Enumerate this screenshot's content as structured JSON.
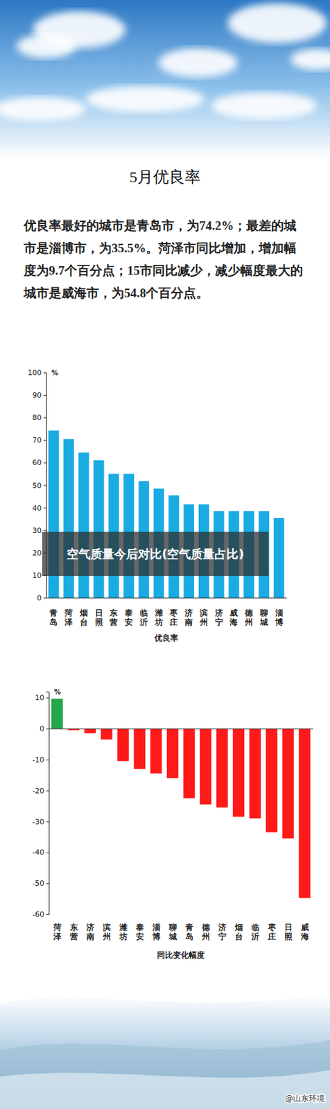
{
  "page": {
    "title": "5月优良率",
    "text": "优良率最好的城市是青岛市，为74.2%；最差的城市是淄博市，为35.5%。菏泽市同比增加，增加幅度为9.7个百分点；15市同比减少，减少幅度最大的城市是威海市，为54.8个百分点。"
  },
  "overlay": "空气质量今后对比(空气质量占比)",
  "watermark": "@山东环境",
  "chart_data": [
    {
      "type": "bar",
      "xlabel": "优良率",
      "ylabel": "%",
      "categories": [
        "青岛",
        "菏泽",
        "烟台",
        "日照",
        "东营",
        "泰安",
        "临沂",
        "潍坊",
        "枣庄",
        "济南",
        "滨州",
        "济宁",
        "威海",
        "德州",
        "聊城",
        "淄博"
      ],
      "values": [
        74.2,
        70.5,
        64.5,
        61,
        55,
        55,
        51.8,
        48.5,
        45.5,
        41.5,
        41.5,
        38.5,
        38.5,
        38.5,
        38.5,
        35.5
      ],
      "color": "#1aabe3",
      "ylim": [
        0,
        100
      ],
      "yticks": [
        0,
        10,
        20,
        30,
        40,
        50,
        60,
        70,
        80,
        90,
        100
      ],
      "grid": false
    },
    {
      "type": "bar",
      "xlabel": "同比变化幅度",
      "ylabel": "%",
      "categories": [
        "菏泽",
        "东营",
        "济南",
        "滨州",
        "潍坊",
        "泰安",
        "淄博",
        "聊城",
        "青岛",
        "德州",
        "济宁",
        "烟台",
        "临沂",
        "枣庄",
        "日照",
        "威海"
      ],
      "values": [
        9.7,
        -0.5,
        -1.5,
        -3.5,
        -10.5,
        -13,
        -14.5,
        -16,
        -22.5,
        -24.5,
        -25.5,
        -28.5,
        -29,
        -33.5,
        -35.5,
        -54.8
      ],
      "colors": [
        "#22a84a",
        "#ff1a1a",
        "#ff1a1a",
        "#ff1a1a",
        "#ff1a1a",
        "#ff1a1a",
        "#ff1a1a",
        "#ff1a1a",
        "#ff1a1a",
        "#ff1a1a",
        "#ff1a1a",
        "#ff1a1a",
        "#ff1a1a",
        "#ff1a1a",
        "#ff1a1a",
        "#ff1a1a"
      ],
      "ylim": [
        -60,
        12
      ],
      "yticks": [
        -60,
        -50,
        -40,
        -30,
        -20,
        -10,
        0,
        10
      ],
      "grid": false
    }
  ]
}
